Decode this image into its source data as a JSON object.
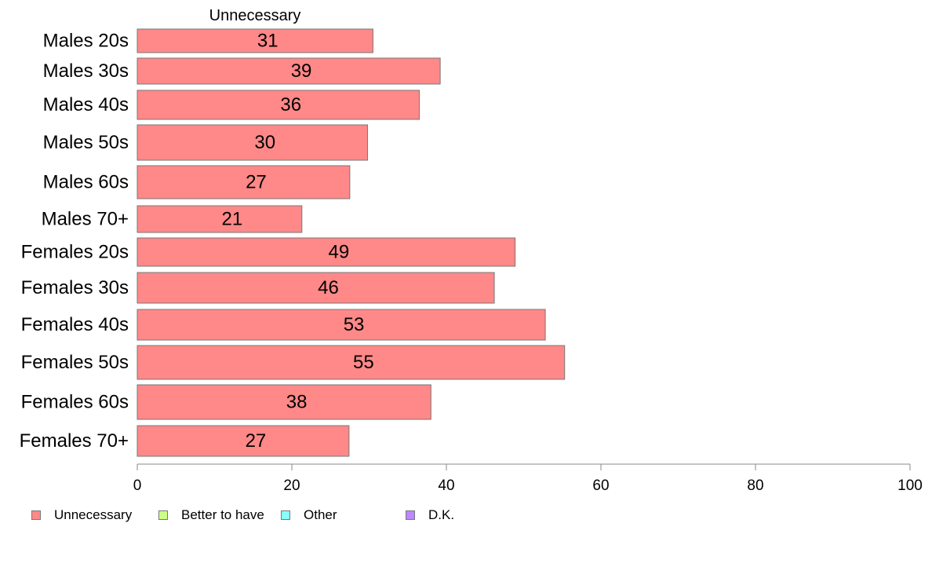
{
  "chart_data": {
    "type": "bar",
    "orientation": "horizontal",
    "series_title": "Unnecessary",
    "categories": [
      "Males 20s",
      "Males 30s",
      "Males 40s",
      "Males 50s",
      "Males 60s",
      "Males 70+",
      "Females 20s",
      "Females 30s",
      "Females 40s",
      "Females 50s",
      "Females 60s",
      "Females 70+"
    ],
    "series": [
      {
        "name": "Unnecessary",
        "color": "#ff8888",
        "values": [
          30.5,
          39.2,
          36.5,
          29.8,
          27.5,
          21.3,
          48.9,
          46.2,
          52.8,
          55.3,
          38.0,
          27.4
        ],
        "labels": [
          "31",
          "39",
          "36",
          "30",
          "27",
          "21",
          "49",
          "46",
          "53",
          "55",
          "38",
          "27"
        ]
      }
    ],
    "xlim": [
      0,
      100
    ],
    "xticks": [
      "0",
      "20",
      "40",
      "60",
      "80",
      "100"
    ],
    "grid": false,
    "legend_position": "bottom-left",
    "legend": [
      {
        "label": "Unnecessary",
        "color": "#ff8888"
      },
      {
        "label": "Better to have",
        "color": "#ccff88"
      },
      {
        "label": "Other",
        "color": "#88ffff"
      },
      {
        "label": "D.K.",
        "color": "#bb88ff"
      }
    ]
  }
}
